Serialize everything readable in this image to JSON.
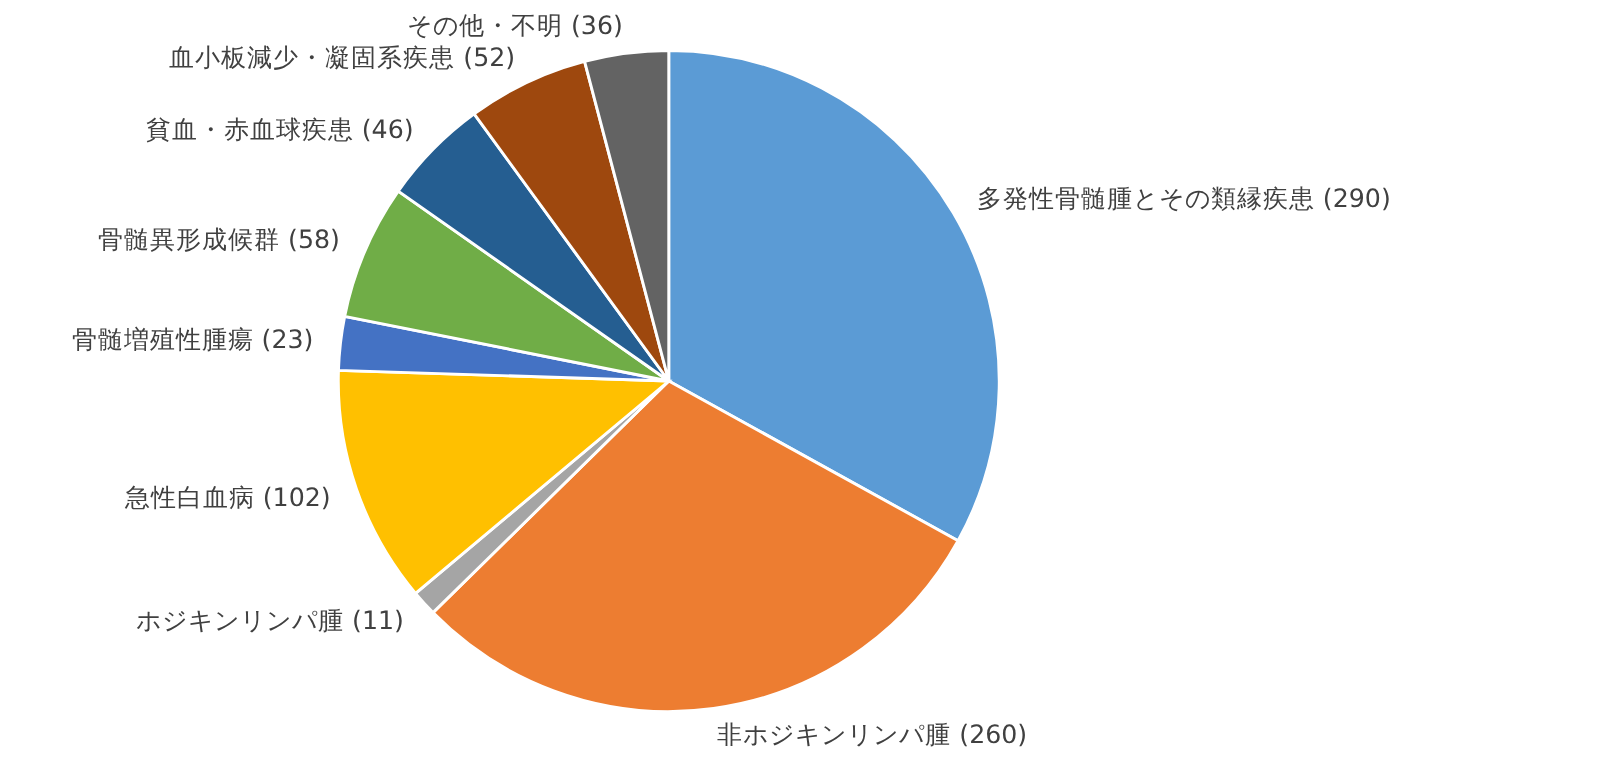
{
  "chart_data": {
    "type": "pie",
    "categories": [
      "多発性骨髄腫とその類縁疾患 (290)",
      "非ホジキンリンパ腫 (260)",
      "ホジキンリンパ腫 (11)",
      "急性白血病 (102)",
      "骨髄増殖性腫瘍 (23)",
      "骨髄異形成候群 (58)",
      "貧血・赤血球疾患 (46)",
      "血小板減少・凝固系疾患 (52)",
      "その他・不明 (36)"
    ],
    "values": [
      290,
      260,
      11,
      102,
      23,
      58,
      46,
      52,
      36
    ],
    "colors": [
      "#5b9bd5",
      "#ed7d31",
      "#a5a5a5",
      "#ffc000",
      "#4472c4",
      "#70ad47",
      "#255e91",
      "#9e480e",
      "#636363"
    ],
    "legend": false
  }
}
